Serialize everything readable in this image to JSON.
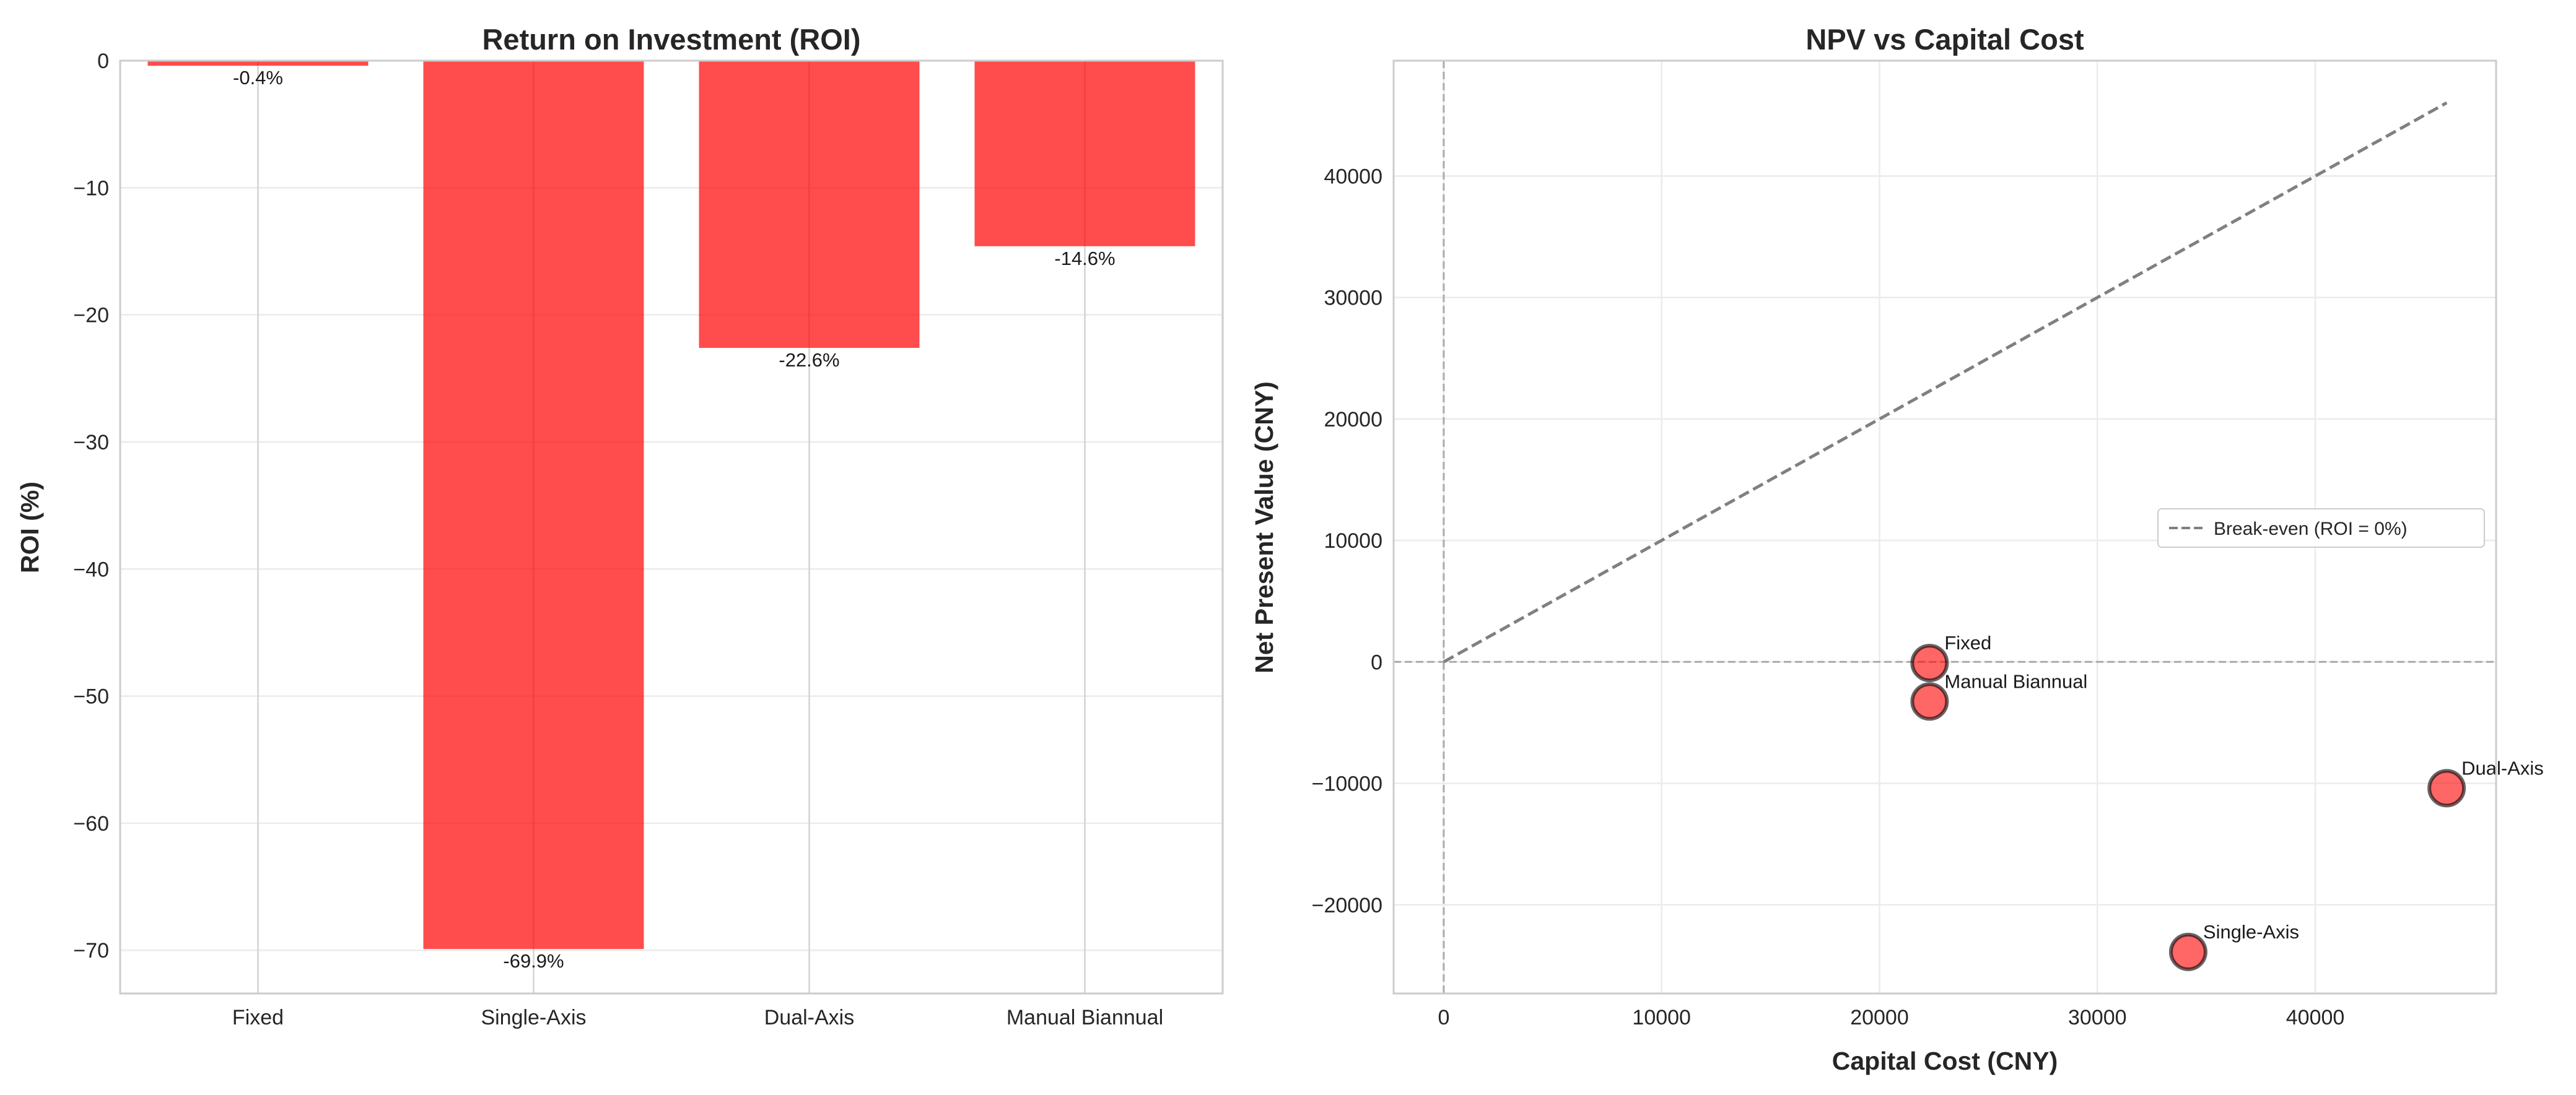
{
  "chart_data": [
    {
      "type": "bar",
      "title": "Return on Investment (ROI)",
      "xlabel": "",
      "ylabel": "ROI (%)",
      "categories": [
        "Fixed",
        "Single-Axis",
        "Dual-Axis",
        "Manual Biannual"
      ],
      "values": [
        -0.4,
        -69.9,
        -22.6,
        -14.6
      ],
      "data_labels": [
        "-0.4%",
        "-69.9%",
        "-22.6%",
        "-14.6%"
      ],
      "ylim": [
        -73.4,
        0
      ],
      "yticks": [
        0,
        -10,
        -20,
        -30,
        -40,
        -50,
        -60,
        -70
      ],
      "ytick_labels": [
        "0",
        "−10",
        "−20",
        "−30",
        "−40",
        "−50",
        "−60",
        "−70"
      ],
      "grid": true,
      "color": "#ff4d4d"
    },
    {
      "type": "scatter",
      "title": "NPV vs Capital Cost",
      "xlabel": "Capital Cost (CNY)",
      "ylabel": "Net Present Value (CNY)",
      "points": [
        {
          "label": "Fixed",
          "x": 22300,
          "y": -90
        },
        {
          "label": "Single-Axis",
          "x": 34170,
          "y": -23880
        },
        {
          "label": "Dual-Axis",
          "x": 46030,
          "y": -10400
        },
        {
          "label": "Manual Biannual",
          "x": 22300,
          "y": -3260
        }
      ],
      "xlim": [
        -2300,
        48300
      ],
      "ylim": [
        -27300,
        49500
      ],
      "xticks": [
        0,
        10000,
        20000,
        30000,
        40000
      ],
      "xtick_labels": [
        "0",
        "10000",
        "20000",
        "30000",
        "40000"
      ],
      "yticks": [
        -20000,
        -10000,
        0,
        10000,
        20000,
        30000,
        40000
      ],
      "ytick_labels": [
        "−20000",
        "−10000",
        "0",
        "10000",
        "20000",
        "30000",
        "40000"
      ],
      "reference_lines": [
        {
          "name": "Break-even (ROI = 0%)",
          "from": [
            0,
            0
          ],
          "to": [
            46030,
            46030
          ],
          "style": "dashed",
          "color": "#808080"
        }
      ],
      "zero_lines": {
        "x": 0,
        "y": 0,
        "style": "dashed",
        "color": "#aaaaaa"
      },
      "legend": {
        "entries": [
          "Break-even (ROI = 0%)"
        ],
        "placement": "center-right"
      },
      "grid": true,
      "color": "#ff6161"
    }
  ]
}
